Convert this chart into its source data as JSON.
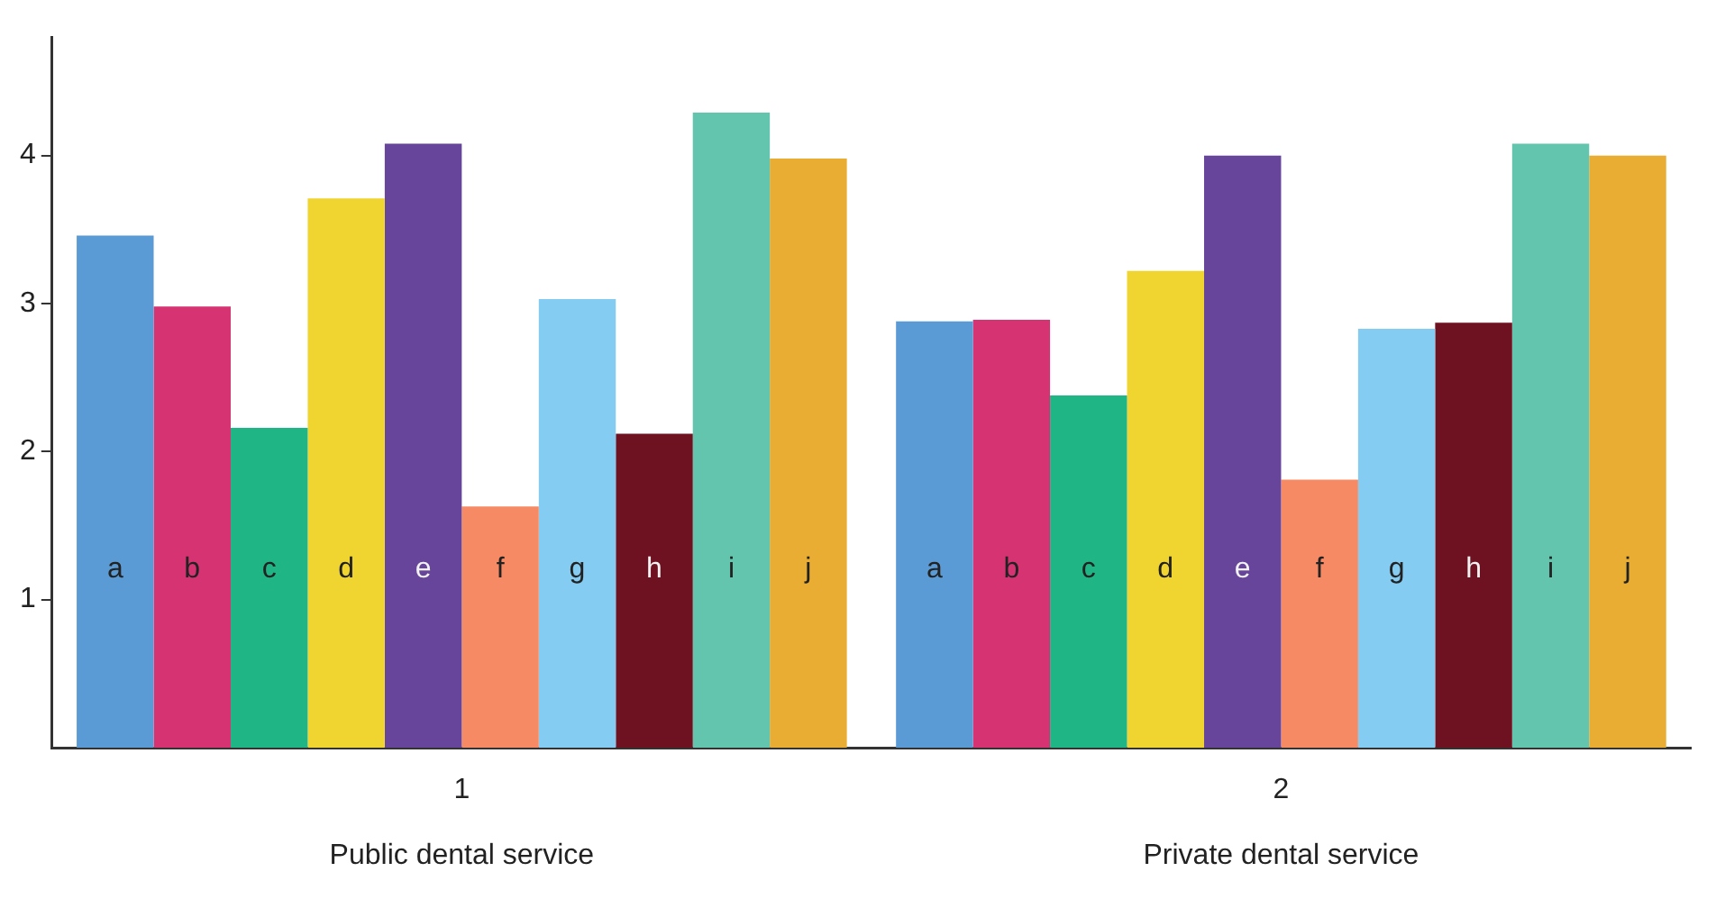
{
  "chart_data": {
    "type": "bar",
    "categories": [
      "1",
      "2"
    ],
    "series": [
      {
        "name": "a",
        "color": "#5b9bd5",
        "values": [
          3.46,
          2.88
        ]
      },
      {
        "name": "b",
        "color": "#d63372",
        "values": [
          2.98,
          2.89
        ]
      },
      {
        "name": "c",
        "color": "#1fb585",
        "values": [
          2.16,
          2.38
        ]
      },
      {
        "name": "d",
        "color": "#f0d530",
        "values": [
          3.71,
          3.22
        ]
      },
      {
        "name": "e",
        "color": "#66459a",
        "values": [
          4.08,
          4.0
        ]
      },
      {
        "name": "f",
        "color": "#f68a65",
        "values": [
          1.63,
          1.81
        ]
      },
      {
        "name": "g",
        "color": "#85ccf2",
        "values": [
          3.03,
          2.83
        ]
      },
      {
        "name": "h",
        "color": "#6e1222",
        "values": [
          2.12,
          2.87
        ]
      },
      {
        "name": "i",
        "color": "#63c5ad",
        "values": [
          4.29,
          4.08
        ]
      },
      {
        "name": "j",
        "color": "#e9ad33",
        "values": [
          3.98,
          4.0
        ]
      }
    ],
    "ylim": [
      0,
      4.8
    ],
    "yticks": [
      1,
      2,
      3,
      4
    ],
    "grid": false,
    "legend": false,
    "annotations": [
      "Public dental service",
      "Private dental service"
    ]
  }
}
